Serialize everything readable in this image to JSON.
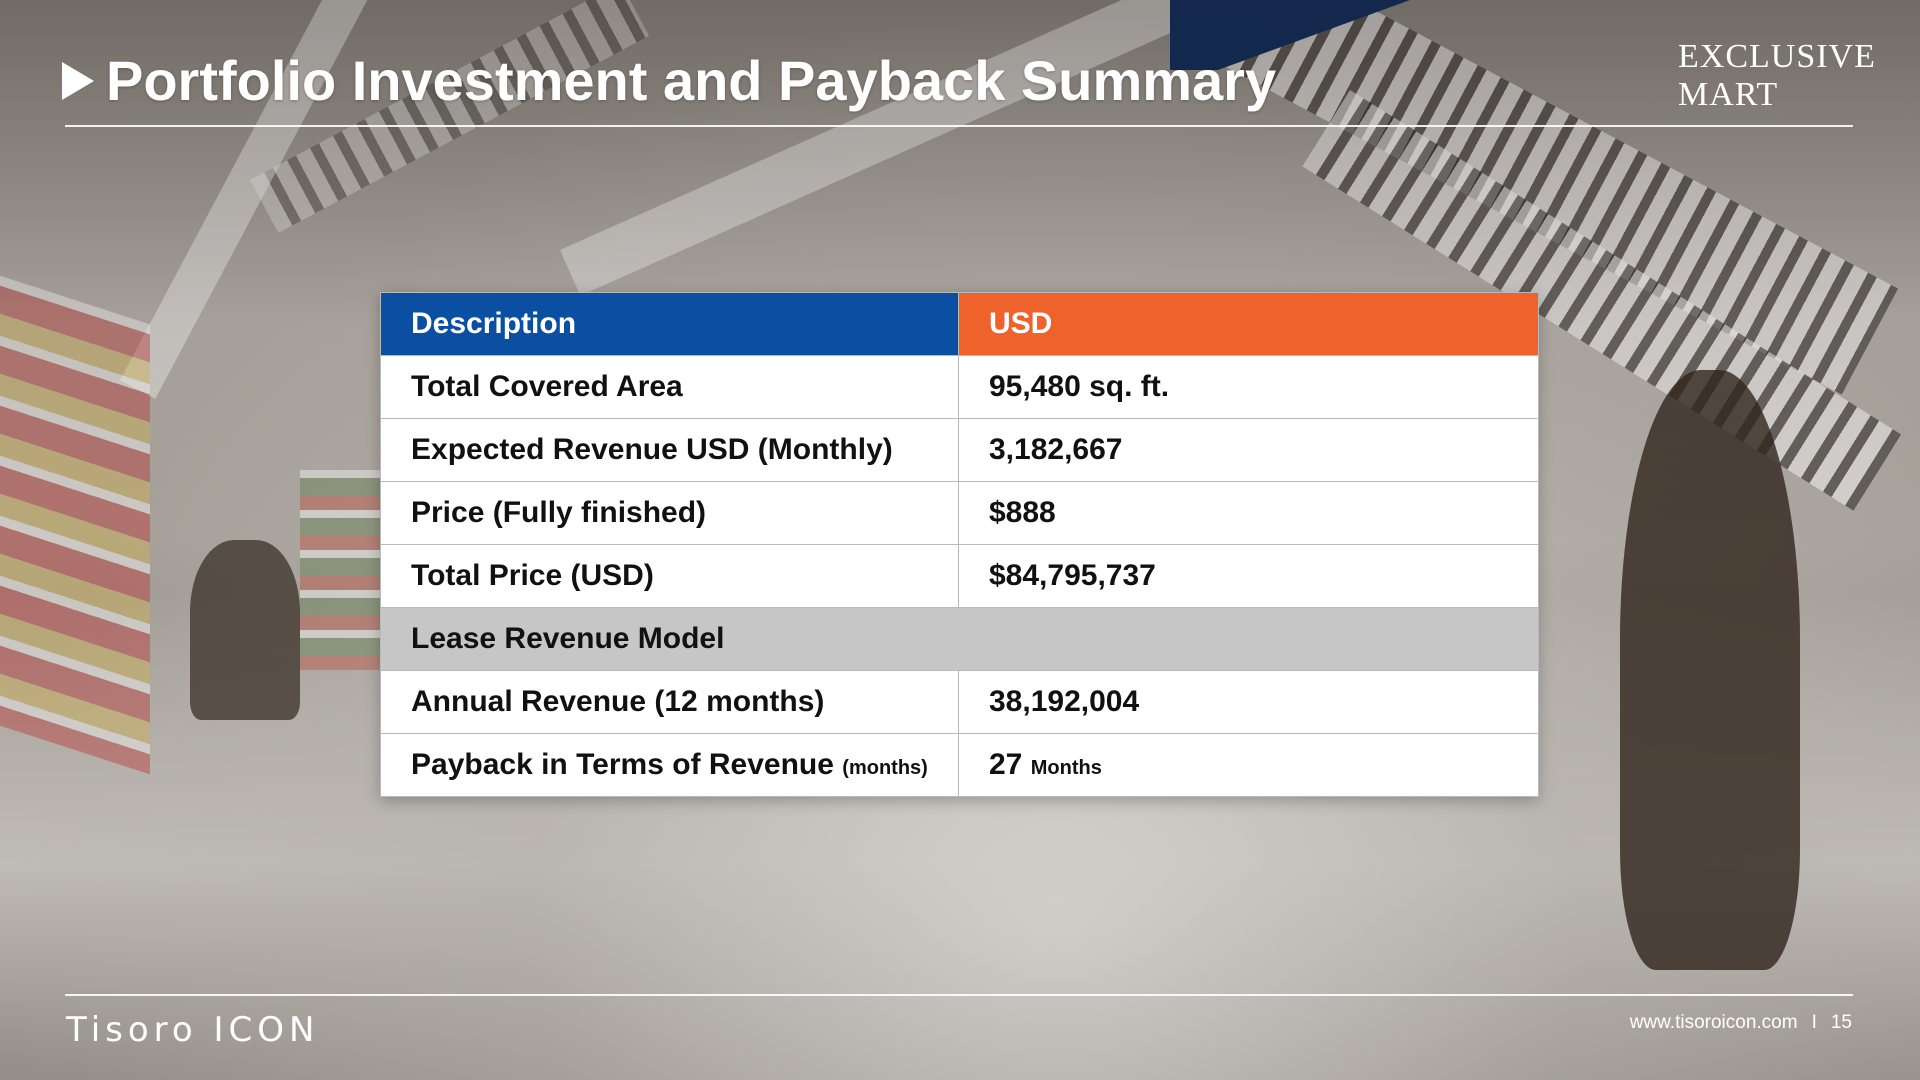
{
  "header": {
    "title": "Portfolio Investment and Payback Summary",
    "brand_logo": [
      "EXCLUSIVE",
      "MART"
    ]
  },
  "table": {
    "headers": [
      "Description",
      "USD"
    ],
    "rows": [
      {
        "label": "Total Covered Area",
        "value": "95,480 sq. ft."
      },
      {
        "label": "Expected Revenue USD (Monthly)",
        "value": "3,182,667"
      },
      {
        "label": "Price (Fully finished)",
        "value": "$888"
      },
      {
        "label": "Total Price (USD)",
        "value": "$84,795,737"
      }
    ],
    "section_label": "Lease Revenue Model",
    "rows2": [
      {
        "label": "Annual Revenue (12 months)",
        "value": "38,192,004"
      },
      {
        "label": "Payback in Terms of Revenue",
        "label_note": "(months)",
        "value": "27",
        "value_note": "Months"
      }
    ]
  },
  "footer": {
    "logo": "Tisoro ICON",
    "url": "www.tisoroicon.com",
    "separator": "I",
    "page": "15"
  },
  "colors": {
    "header_blue": "#0b4fa3",
    "header_orange": "#f0622c",
    "section_gray": "#c6c6c6"
  }
}
